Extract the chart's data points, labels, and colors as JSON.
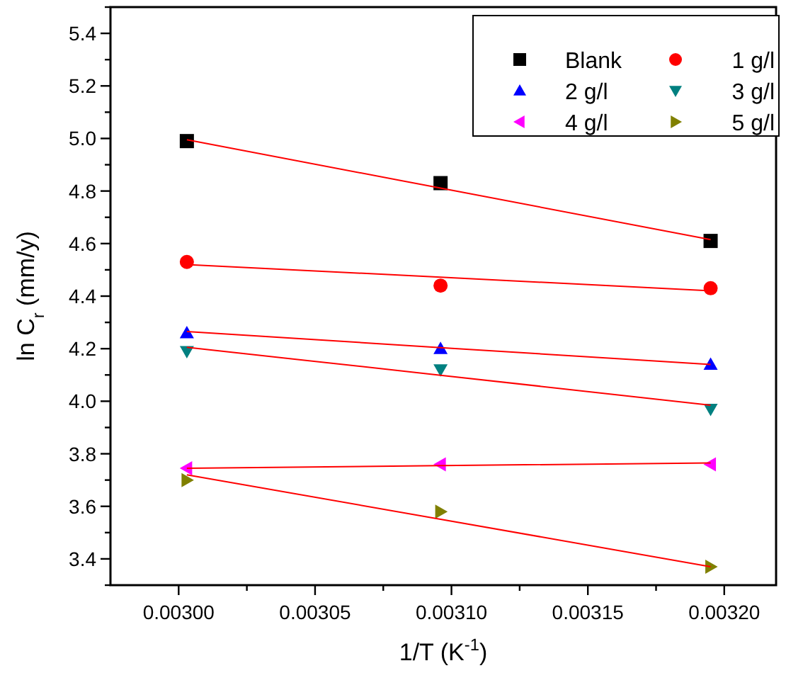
{
  "chart_data": {
    "type": "scatter",
    "xlabel": "1/T (K$^{-1}$)",
    "ylabel": "ln C$_{r}$ (mm/y)",
    "xlim": [
      0.002975,
      0.003219
    ],
    "ylim": [
      3.3,
      5.5
    ],
    "xticks": [
      {
        "value": 0.003,
        "label": "0.00300"
      },
      {
        "value": 0.003025,
        "label": null
      },
      {
        "value": 0.00305,
        "label": "0.00305"
      },
      {
        "value": 0.003075,
        "label": null
      },
      {
        "value": 0.0031,
        "label": "0.00310"
      },
      {
        "value": 0.003125,
        "label": null
      },
      {
        "value": 0.00315,
        "label": "0.00315"
      },
      {
        "value": 0.003175,
        "label": null
      },
      {
        "value": 0.0032,
        "label": "0.00320"
      }
    ],
    "yticks": [
      {
        "value": 3.3,
        "label": null
      },
      3.4,
      {
        "value": 3.5,
        "label": null
      },
      3.6,
      {
        "value": 3.7,
        "label": null
      },
      3.8,
      {
        "value": 3.9,
        "label": null
      },
      {
        "value": 4.0,
        "label": "4.0"
      },
      {
        "value": 4.1,
        "label": null
      },
      4.2,
      {
        "value": 4.3,
        "label": null
      },
      4.4,
      {
        "value": 4.5,
        "label": null
      },
      4.6,
      {
        "value": 4.7,
        "label": null
      },
      4.8,
      {
        "value": 4.9,
        "label": null
      },
      {
        "value": 5.0,
        "label": "5.0"
      },
      {
        "value": 5.1,
        "label": null
      },
      5.2,
      {
        "value": 5.3,
        "label": null
      },
      5.4,
      {
        "value": 5.5,
        "label": null
      }
    ],
    "x": [
      0.003003,
      0.003096,
      0.003195
    ],
    "grid": false,
    "legend": "top right",
    "series": [
      {
        "name": "Blank",
        "color": "#000000",
        "marker": "square",
        "values": [
          4.99,
          4.83,
          4.61
        ]
      },
      {
        "name": "1 g/l",
        "color": "#ff0000",
        "marker": "circle",
        "values": [
          4.53,
          4.44,
          4.43
        ]
      },
      {
        "name": "2 g/l",
        "color": "#0000ff",
        "marker": "triangle",
        "values": [
          4.26,
          4.2,
          4.14
        ]
      },
      {
        "name": "3 g/l",
        "color": "#008080",
        "marker": "triangle-down",
        "values": [
          4.19,
          4.12,
          3.97
        ]
      },
      {
        "name": "4 g/l",
        "color": "#ff00ff",
        "marker": "triangle-left",
        "values": [
          3.745,
          3.76,
          3.76
        ]
      },
      {
        "name": "5 g/l",
        "color": "#808000",
        "marker": "triangle-right",
        "values": [
          3.7,
          3.58,
          3.37
        ]
      },
      {
        "type": "line",
        "color": "#ff0000",
        "marker": "none",
        "values": [
          4.995,
          4.811,
          4.615
        ]
      },
      {
        "type": "line",
        "color": "#ff0000",
        "marker": "none",
        "values": [
          4.52,
          4.472,
          4.42
        ]
      },
      {
        "type": "line",
        "color": "#ff0000",
        "marker": "none",
        "values": [
          4.265,
          4.204,
          4.14
        ]
      },
      {
        "type": "line",
        "color": "#ff0000",
        "marker": "none",
        "values": [
          4.205,
          4.099,
          3.985
        ]
      },
      {
        "type": "line",
        "color": "#ff0000",
        "marker": "none",
        "values": [
          3.745,
          3.755,
          3.765
        ]
      },
      {
        "type": "line",
        "color": "#ff0000",
        "marker": "none",
        "values": [
          3.72,
          3.551,
          3.37
        ]
      }
    ]
  }
}
